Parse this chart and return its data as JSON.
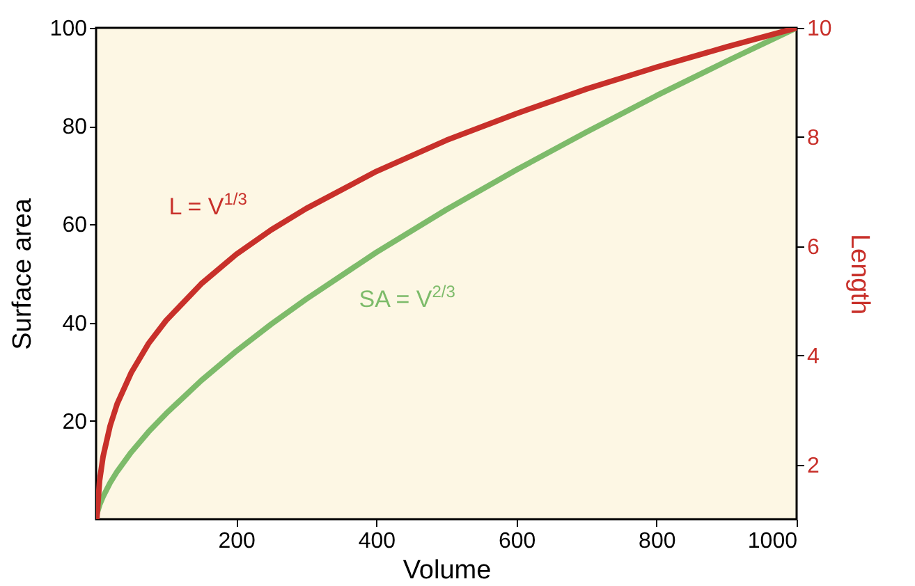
{
  "chart_data": {
    "type": "line",
    "xlabel": "Volume",
    "ylabel": "Surface area",
    "y2label": "Length",
    "x": [
      1,
      5,
      10,
      20,
      30,
      50,
      75,
      100,
      150,
      200,
      250,
      300,
      400,
      500,
      600,
      700,
      800,
      900,
      1000
    ],
    "xlim": [
      0,
      1000
    ],
    "xticks": [
      200,
      400,
      600,
      800,
      1000
    ],
    "ylim": [
      0,
      100
    ],
    "yticks": [
      20,
      40,
      60,
      80,
      100
    ],
    "y2lim": [
      1,
      10
    ],
    "y2ticks": [
      2,
      4,
      6,
      8,
      10
    ],
    "series": [
      {
        "name": "SA = V$^{2/3}$",
        "color": "#7dbb6a",
        "values": [
          1,
          2.9,
          4.6,
          7.4,
          9.7,
          13.6,
          17.8,
          21.5,
          28.2,
          34.2,
          39.7,
          44.8,
          54.3,
          63.0,
          71.1,
          78.8,
          86.2,
          93.2,
          100
        ]
      },
      {
        "name": "L = V$^{1/3}$",
        "color": "#c8302a",
        "axis": "y2",
        "values": [
          1,
          1.71,
          2.15,
          2.71,
          3.11,
          3.68,
          4.22,
          4.64,
          5.31,
          5.85,
          6.3,
          6.69,
          7.37,
          7.94,
          8.43,
          8.88,
          9.28,
          9.65,
          10
        ]
      }
    ],
    "grid": false,
    "marker": "none",
    "line_style": "solid"
  }
}
